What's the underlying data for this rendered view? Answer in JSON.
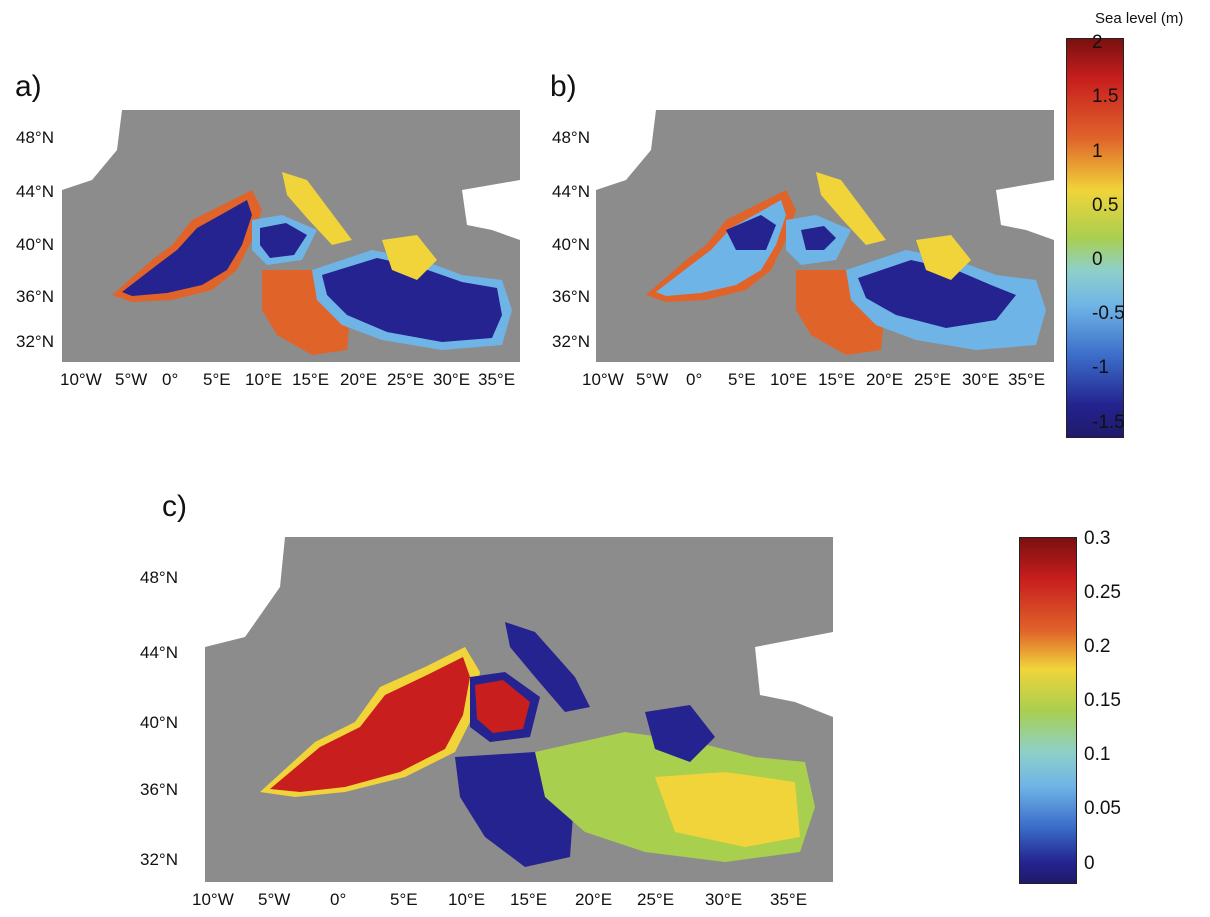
{
  "panels": {
    "a": {
      "label": "a)"
    },
    "b": {
      "label": "b)"
    },
    "c": {
      "label": "c)"
    }
  },
  "lat_labels": [
    "48°N",
    "44°N",
    "40°N",
    "36°N",
    "32°N"
  ],
  "lon_labels": [
    "10°W",
    "5°W",
    "0°",
    "5°E",
    "10°E",
    "15°E",
    "20°E",
    "25°E",
    "30°E",
    "35°E"
  ],
  "colorbar_top": {
    "title": "Sea level (m)",
    "labels": [
      "2",
      "1.5",
      "1",
      "0.5",
      "0",
      "-0.5",
      "-1",
      "-1.5"
    ],
    "range": [
      -1.7,
      2.0
    ]
  },
  "colorbar_bottom": {
    "labels": [
      "0.3",
      "0.25",
      "0.2",
      "0.15",
      "0.1",
      "0.05",
      "0"
    ],
    "range": [
      -0.02,
      0.3
    ]
  },
  "colors": {
    "land": "#8c8c8c",
    "unmapped": "#ffffff",
    "deep_blue": "#24238f",
    "light_blue": "#6fb4e6",
    "orange": "#e0642a",
    "yellow": "#f0d43a",
    "red": "#c81e1e",
    "green": "#a9cf4f"
  }
}
